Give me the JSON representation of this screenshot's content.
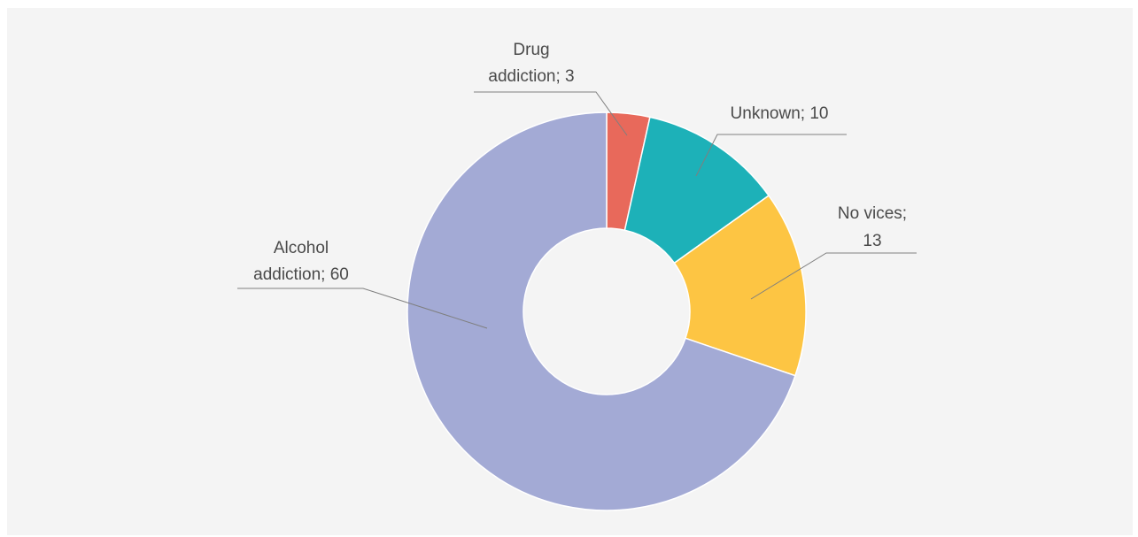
{
  "chart_data": {
    "type": "pie",
    "variant": "donut",
    "title": "",
    "slices": [
      {
        "label": "Drug addiction",
        "value": 3,
        "color": "#e8695b"
      },
      {
        "label": "Unknown",
        "value": 10,
        "color": "#1db1b8"
      },
      {
        "label": "No vices",
        "value": 13,
        "color": "#fdc543"
      },
      {
        "label": "Alcohol addiction",
        "value": 60,
        "color": "#a3aad5"
      }
    ],
    "data_labels": [
      {
        "lines": [
          "Drug",
          "addiction; 3"
        ]
      },
      {
        "lines": [
          "Unknown; 10"
        ]
      },
      {
        "lines": [
          "No vices;",
          "13"
        ]
      },
      {
        "lines": [
          "Alcohol",
          "addiction; 60"
        ]
      }
    ],
    "legend": "none",
    "background": "#f4f4f4"
  }
}
